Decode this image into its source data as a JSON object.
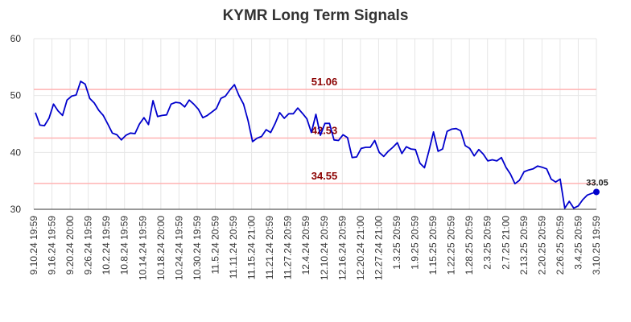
{
  "chart_data": {
    "type": "line",
    "title": "KYMR Long Term Signals",
    "xlabel": "",
    "ylabel": "",
    "ylim": [
      30,
      60
    ],
    "yticks": [
      30,
      40,
      50,
      60
    ],
    "grid": true,
    "colors": {
      "line": "#0000cc",
      "reference": "#ffb3b3",
      "reference_label": "#8b0000",
      "grid": "#e6e6e6"
    },
    "x_tick_labels": [
      "9.10.24 19:59",
      "9.16.24 19:59",
      "9.20.24 20:00",
      "9.26.24 19:59",
      "10.2.24 19:59",
      "10.8.24 19:59",
      "10.14.24 19:59",
      "10.18.24 20:00",
      "10.24.24 19:59",
      "10.30.24 19:59",
      "11.5.24 20:59",
      "11.11.24 20:59",
      "11.15.24 21:00",
      "11.21.24 20:59",
      "11.27.24 20:59",
      "12.4.24 20:59",
      "12.10.24 20:59",
      "12.16.24 20:59",
      "12.20.24 21:00",
      "12.27.24 21:00",
      "1.3.25 20:59",
      "1.9.25 20:59",
      "1.15.25 20:59",
      "1.22.25 20:59",
      "1.28.25 20:59",
      "2.3.25 20:59",
      "2.7.25 21:00",
      "2.13.25 20:59",
      "2.20.25 20:59",
      "2.26.25 20:59",
      "3.4.25 20:59",
      "3.10.25 19:59"
    ],
    "reference_lines": [
      {
        "value": 51.06,
        "label": "51.06"
      },
      {
        "value": 42.53,
        "label": "42.53"
      },
      {
        "value": 34.55,
        "label": "34.55"
      }
    ],
    "last_value_label": "33.05",
    "series": [
      {
        "values": [
          47.0,
          44.8,
          44.7,
          46.0,
          48.5,
          47.3,
          46.5,
          49.2,
          49.9,
          50.1,
          52.5,
          52.0,
          49.5,
          48.7,
          47.4,
          46.5,
          45.0,
          43.4,
          43.1,
          42.2,
          43.0,
          43.4,
          43.3,
          45.0,
          46.1,
          44.9,
          49.1,
          46.3,
          46.5,
          46.6,
          48.5,
          48.8,
          48.7,
          48.0,
          49.2,
          48.5,
          47.6,
          46.1,
          46.5,
          47.1,
          47.7,
          49.5,
          49.9,
          51.0,
          51.9,
          50.0,
          48.5,
          45.6,
          41.9,
          42.5,
          42.8,
          44.0,
          43.5,
          45.1,
          47.0,
          46.0,
          46.8,
          46.8,
          47.8,
          46.9,
          45.9,
          43.5,
          46.7,
          43.0,
          45.1,
          45.1,
          42.2,
          42.1,
          43.1,
          42.6,
          39.1,
          39.2,
          40.7,
          40.9,
          40.9,
          42.1,
          40.0,
          39.3,
          40.2,
          40.9,
          41.7,
          39.8,
          41.0,
          40.6,
          40.5,
          38.1,
          37.3,
          40.3,
          43.6,
          40.2,
          40.6,
          43.7,
          44.1,
          44.2,
          43.8,
          41.2,
          40.7,
          39.4,
          40.5,
          39.7,
          38.5,
          38.7,
          38.5,
          39.1,
          37.4,
          36.2,
          34.5,
          35.1,
          36.6,
          36.9,
          37.1,
          37.6,
          37.4,
          37.1,
          35.3,
          34.8,
          35.3,
          30.2,
          31.4,
          30.2,
          30.6,
          31.7,
          32.5,
          32.8,
          33.05
        ]
      }
    ]
  }
}
